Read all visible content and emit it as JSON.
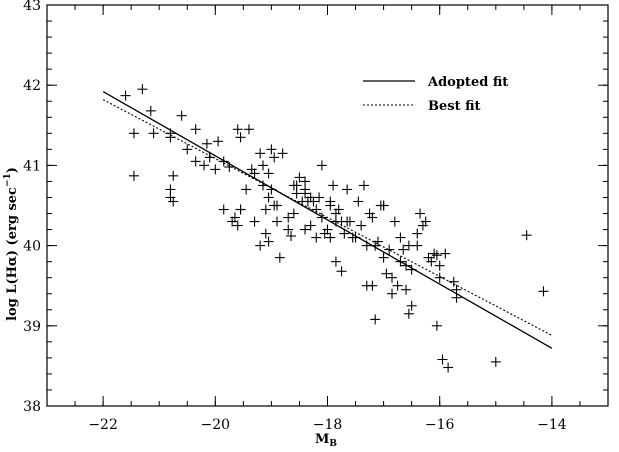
{
  "chart_data": {
    "type": "scatter",
    "title": "",
    "xlabel_main": "M",
    "xlabel_sub": "B",
    "ylabel": "log L(Hα) (erg sec",
    "ylabel_sup": "−1",
    "ylabel_close": ")",
    "xlim": [
      -23,
      -13
    ],
    "ylim": [
      38,
      43
    ],
    "xticks": [
      -22,
      -20,
      -18,
      -16,
      -14
    ],
    "xtick_labels": [
      "−22",
      "−20",
      "−18",
      "−16",
      "−14"
    ],
    "yticks": [
      38,
      39,
      40,
      41,
      42,
      43
    ],
    "ytick_labels": [
      "38",
      "39",
      "40",
      "41",
      "42",
      "43"
    ],
    "x_minor_step": 0.5,
    "y_minor_step": 0.2,
    "grid": false,
    "legend": {
      "placement": "top-right",
      "entries": [
        {
          "label": "Adopted fit",
          "style": "solid"
        },
        {
          "label": "Best fit",
          "style": "dotted"
        }
      ]
    },
    "lines": [
      {
        "name": "Adopted fit",
        "style": "solid",
        "x": [
          -22,
          -14
        ],
        "y": [
          41.92,
          38.72
        ]
      },
      {
        "name": "Best fit",
        "style": "dotted",
        "x": [
          -22,
          -14
        ],
        "y": [
          41.82,
          38.88
        ]
      }
    ],
    "points": {
      "x": [
        -21.6,
        -21.3,
        -21.15,
        -21.45,
        -21.45,
        -20.8,
        -20.6,
        -20.35,
        -20.15,
        -20.8,
        -20.75,
        -20.8,
        -20.1,
        -19.95,
        -19.85,
        -19.75,
        -19.55,
        -19.4,
        -19.2,
        -19.35,
        -19.15,
        -19.05,
        -19.0,
        -18.9,
        -18.7,
        -18.55,
        -18.4,
        -18.35,
        -18.1,
        -17.95,
        -17.9,
        -17.85,
        -17.65,
        -17.5,
        -17.3,
        -17.15,
        -17.05,
        -17.0,
        -16.85,
        -16.7,
        -16.6,
        -16.35,
        -16.1,
        -16.05,
        -15.7,
        -14.45,
        -14.15,
        -15.0,
        -15.85,
        -15.95,
        -16.05,
        -16.5,
        -16.55,
        -16.6,
        -16.95,
        -17.2,
        -17.75,
        -17.85,
        -18.2,
        -18.4,
        -18.65,
        -18.85,
        -19.05,
        -19.1,
        -19.3,
        -19.55,
        -19.65,
        -19.85,
        -20.0,
        -20.2,
        -20.35,
        -20.5,
        -20.8,
        -20.75,
        -21.1,
        -19.0,
        -18.95,
        -19.55,
        -19.6,
        -19.15,
        -19.05,
        -18.8,
        -18.6,
        -18.55,
        -18.45,
        -18.4,
        -18.3,
        -18.2,
        -18.1,
        -18.0,
        -17.95,
        -17.8,
        -17.7,
        -17.6,
        -17.55,
        -17.4,
        -17.3,
        -17.2,
        -17.1,
        -17.0,
        -16.9,
        -16.8,
        -16.7,
        -16.5,
        -16.4,
        -16.3,
        -16.2,
        -16.0,
        -15.9,
        -15.75,
        -19.7,
        -19.6,
        -19.45,
        -19.3,
        -19.1,
        -18.9,
        -18.7,
        -18.6,
        -18.5,
        -18.4,
        -18.25,
        -18.15,
        -18.05,
        -17.95,
        -17.85,
        -17.65,
        -17.45,
        -17.25,
        -17.15,
        -16.85,
        -16.75,
        -16.55,
        -16.4,
        -16.25,
        -16.15,
        -16.0,
        -15.7,
        -19.2,
        -18.95,
        -18.3,
        -17.75,
        -17.35,
        -17.0,
        -16.65
      ],
      "y": [
        41.87,
        41.95,
        41.68,
        41.4,
        40.87,
        41.4,
        41.62,
        41.45,
        41.27,
        41.35,
        40.87,
        40.6,
        41.1,
        41.3,
        41.05,
        40.98,
        40.45,
        41.45,
        41.15,
        40.95,
        40.75,
        40.6,
        40.7,
        40.5,
        40.35,
        40.75,
        40.65,
        40.55,
        41.0,
        40.5,
        40.75,
        40.4,
        40.3,
        40.1,
        39.5,
        39.08,
        40.5,
        39.85,
        39.4,
        39.8,
        39.45,
        40.4,
        39.9,
        39.0,
        39.35,
        40.13,
        39.43,
        38.55,
        38.48,
        38.58,
        39.88,
        39.25,
        39.15,
        39.75,
        39.65,
        39.5,
        39.68,
        39.8,
        40.1,
        40.2,
        40.12,
        39.85,
        40.05,
        40.15,
        40.3,
        40.45,
        40.35,
        40.45,
        40.95,
        41.0,
        41.05,
        41.2,
        40.7,
        40.55,
        41.4,
        41.2,
        41.1,
        41.35,
        41.45,
        41.0,
        40.9,
        41.15,
        40.75,
        40.65,
        40.55,
        40.8,
        40.25,
        40.45,
        40.35,
        40.2,
        40.55,
        40.45,
        40.15,
        40.3,
        40.1,
        40.25,
        40.0,
        40.35,
        40.05,
        40.5,
        39.95,
        40.3,
        40.1,
        39.7,
        40.0,
        40.25,
        39.85,
        39.75,
        39.9,
        39.55,
        40.3,
        40.25,
        40.7,
        40.9,
        40.45,
        40.3,
        40.2,
        40.4,
        40.85,
        40.7,
        40.55,
        40.6,
        40.15,
        40.1,
        40.3,
        40.7,
        40.55,
        40.4,
        40.0,
        39.6,
        39.5,
        40.0,
        40.15,
        40.3,
        39.8,
        39.6,
        39.45,
        40.0,
        40.5,
        40.6,
        40.3,
        40.75,
        40.5,
        39.95
      ]
    }
  }
}
